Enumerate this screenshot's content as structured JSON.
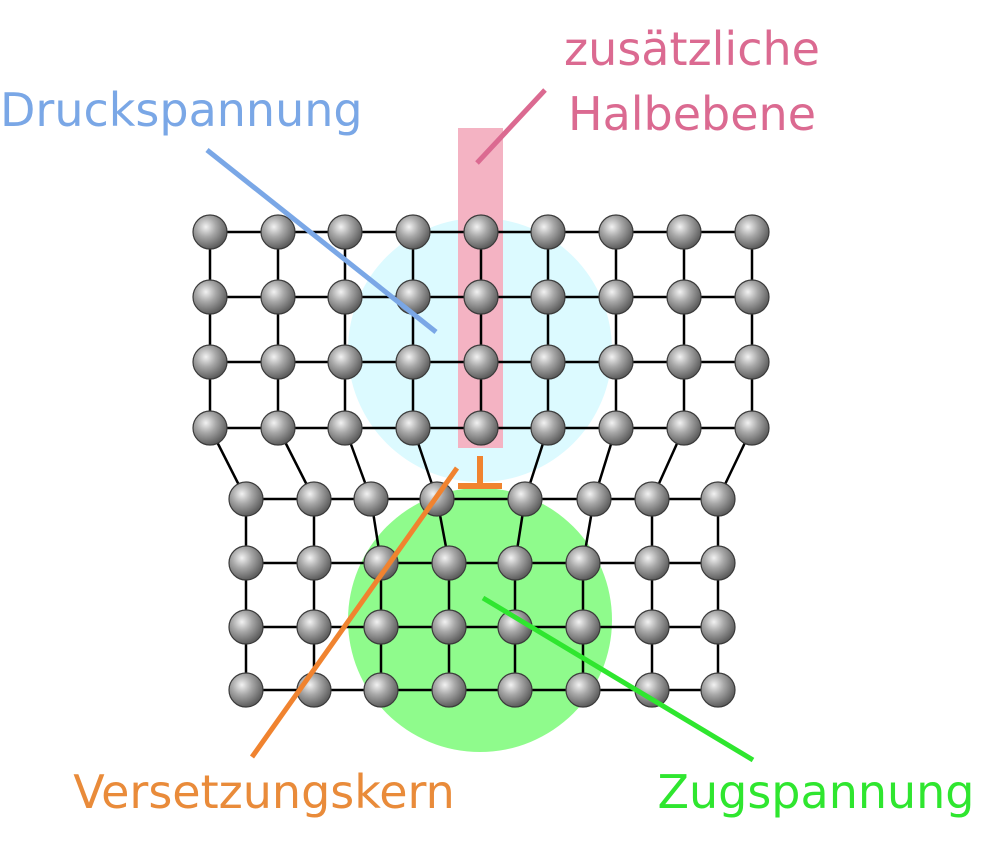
{
  "labels": {
    "compression": "Druckspannung",
    "extra_half_plane_line1": "zusätzliche",
    "extra_half_plane_line2": "Halbebene",
    "dislocation_core": "Versetzungskern",
    "tension": "Zugspannung"
  },
  "colors": {
    "compression": "#7aa7e6",
    "compression_zone": "#dcfaff",
    "extra_half_plane": "#db6a91",
    "half_plane_bar": "#f4b3c3",
    "dislocation_core": "#f0832f",
    "tension": "#2fe62f",
    "tension_zone": "#8ffb8c",
    "bond": "#000000",
    "atom": "#8a8a8a"
  },
  "lattice": {
    "upper_rows": 4,
    "upper_columns": 9,
    "lower_rows": 4,
    "lower_columns": 8
  },
  "dislocation_symbol": "⊥"
}
